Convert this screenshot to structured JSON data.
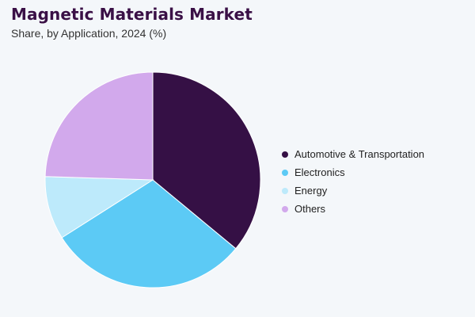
{
  "chart_data": {
    "type": "pie",
    "title": "Magnetic Materials Market",
    "subtitle": "Share, by Application, 2024 (%)",
    "slices": [
      {
        "label": "Automotive & Transportation",
        "value": 36.0,
        "color": "#351045"
      },
      {
        "label": "Electronics",
        "value": 30.0,
        "color": "#5ccaf5"
      },
      {
        "label": "Energy",
        "value": 9.5,
        "color": "#bdeafb"
      },
      {
        "label": "Others",
        "value": 24.5,
        "color": "#d2a9ec"
      }
    ],
    "start_angle": "12 o'clock",
    "direction": "clockwise",
    "legend_position": "right"
  }
}
